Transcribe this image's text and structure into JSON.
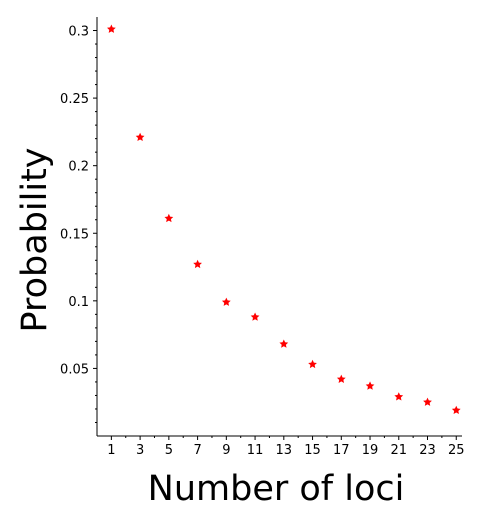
{
  "chart_data": {
    "type": "scatter",
    "title": "",
    "xlabel": "Number of loci",
    "ylabel": "Probability",
    "x": [
      1,
      3,
      5,
      7,
      9,
      11,
      13,
      15,
      17,
      19,
      21,
      23,
      25
    ],
    "series": [
      {
        "values": [
          0.301,
          0.221,
          0.161,
          0.127,
          0.099,
          0.088,
          0.068,
          0.053,
          0.042,
          0.037,
          0.029,
          0.025,
          0.019
        ],
        "color": "#ff0000",
        "marker": "star"
      }
    ],
    "x_ticks": [
      1,
      3,
      5,
      7,
      9,
      11,
      13,
      15,
      17,
      19,
      21,
      23,
      25
    ],
    "x_tick_labels": [
      "1",
      "3",
      "5",
      "7",
      "9",
      "11",
      "13",
      "15",
      "17",
      "19",
      "21",
      "23",
      "25"
    ],
    "y_ticks": [
      0.05,
      0.1,
      0.15,
      0.2,
      0.25,
      0.3
    ],
    "y_tick_labels": [
      "0.05",
      "0.1",
      "0.15",
      "0.2",
      "0.25",
      "0.3"
    ],
    "xlim": [
      0,
      25.4
    ],
    "ylim": [
      0,
      0.31
    ],
    "grid": false,
    "legend": "none"
  }
}
